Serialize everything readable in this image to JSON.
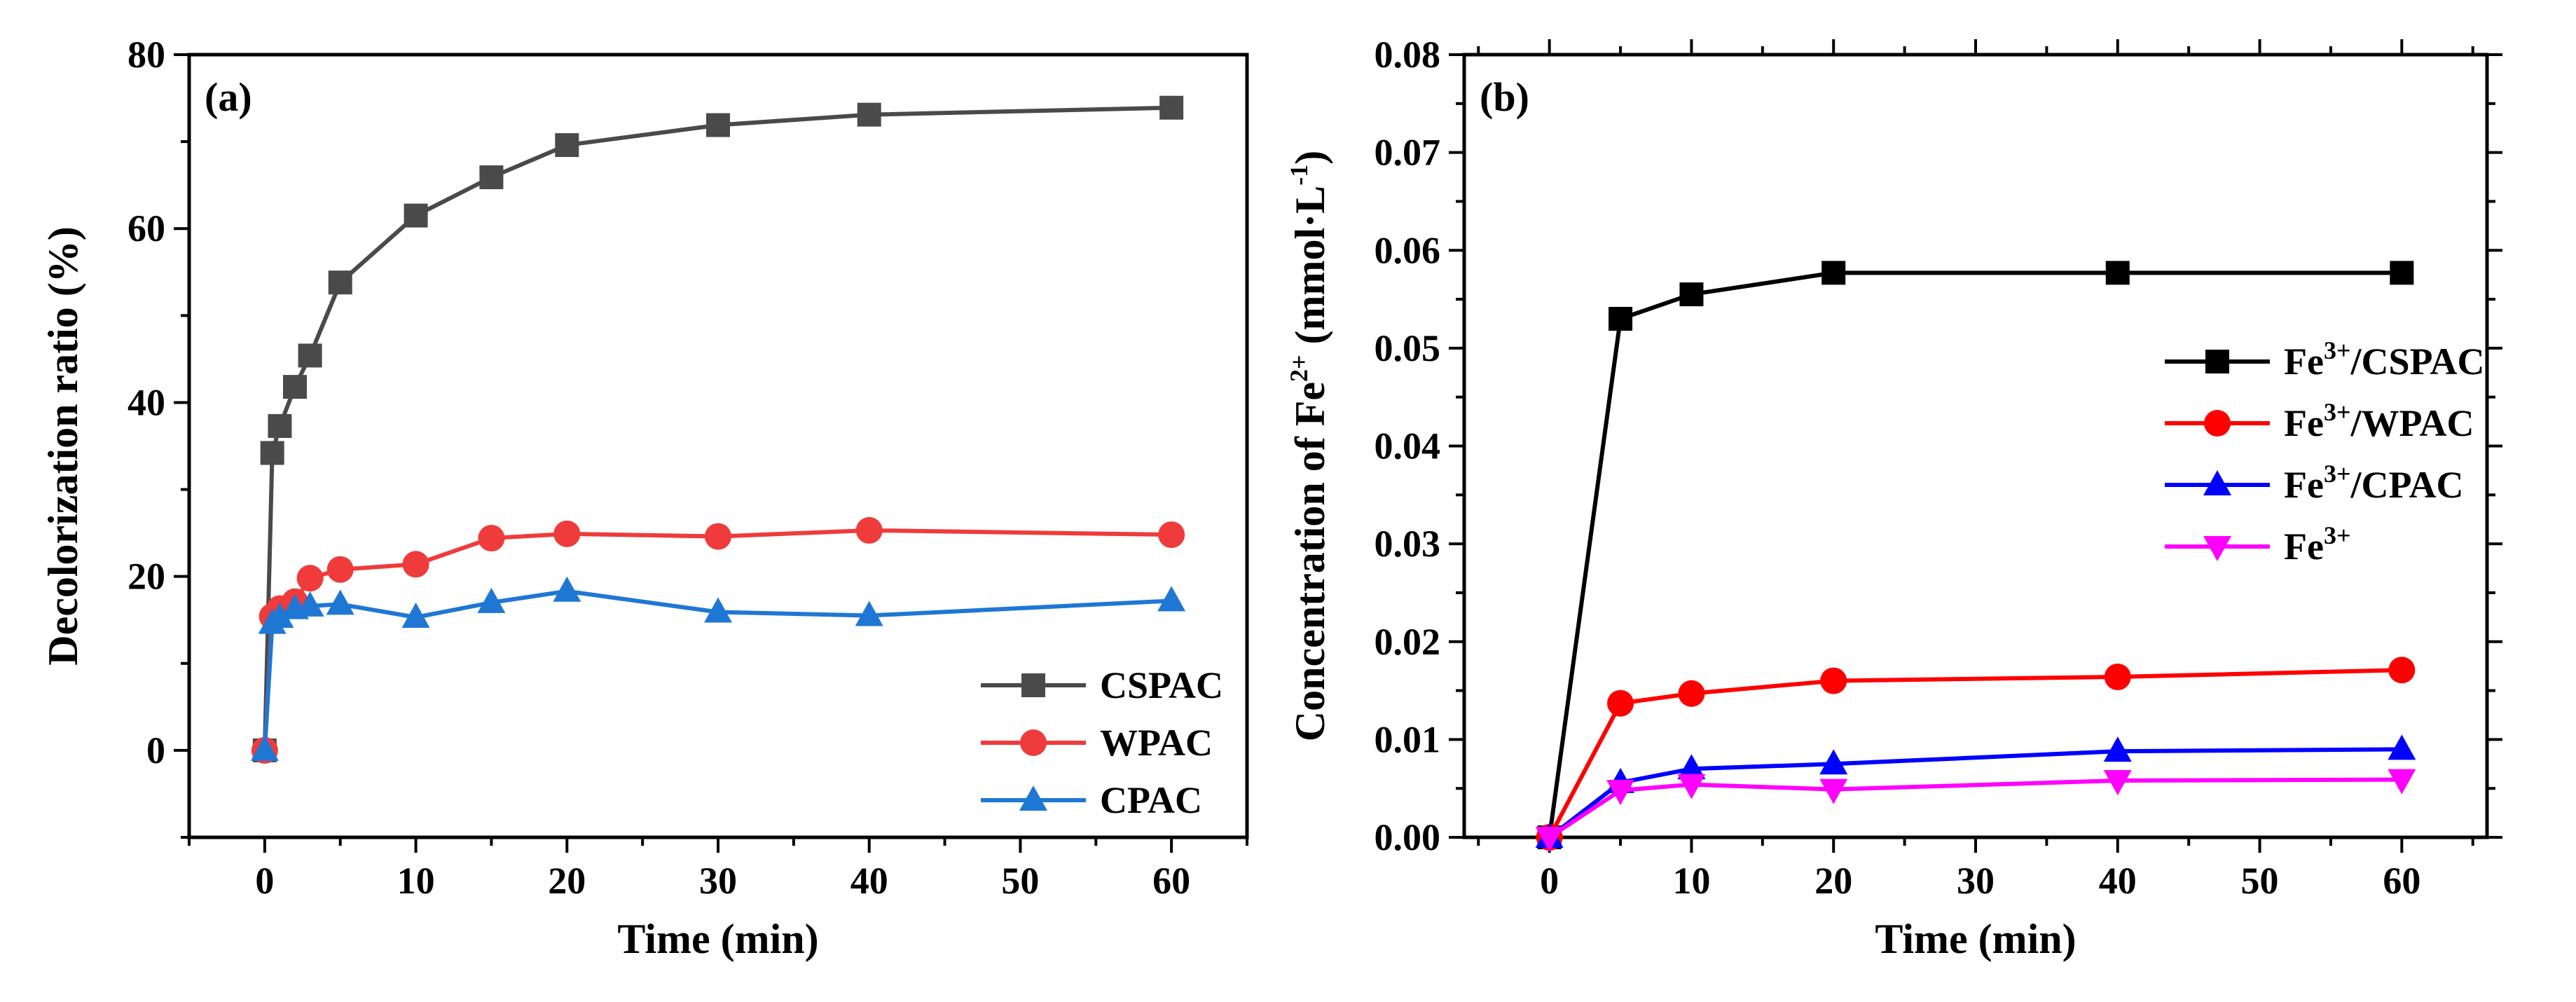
{
  "chart_data": [
    {
      "type": "line",
      "panel_label": "(a)",
      "xlabel": "Time (min)",
      "ylabel": "Decolorization ratio (%)",
      "xlim": [
        -5,
        65
      ],
      "ylim": [
        -10,
        80
      ],
      "xticks": [
        0,
        10,
        20,
        30,
        40,
        50,
        60
      ],
      "yticks": [
        0,
        20,
        40,
        60,
        80
      ],
      "legend_position": "bottom-right",
      "series": [
        {
          "name": "CSPAC",
          "color": "#4a4a4a",
          "marker": "square",
          "x": [
            0,
            0.5,
            1,
            2,
            3,
            5,
            10,
            15,
            20,
            30,
            40,
            60
          ],
          "y": [
            0,
            34.2,
            37.3,
            41.8,
            45.4,
            53.8,
            61.5,
            65.9,
            69.6,
            71.9,
            73.1,
            73.9
          ]
        },
        {
          "name": "WPAC",
          "color": "#ef3b3b",
          "marker": "circle",
          "x": [
            0,
            0.5,
            1,
            2,
            3,
            5,
            10,
            15,
            20,
            30,
            40,
            60
          ],
          "y": [
            0,
            15.4,
            16.3,
            17.1,
            19.8,
            20.8,
            21.4,
            24.4,
            24.9,
            24.6,
            25.3,
            24.8
          ]
        },
        {
          "name": "CPAC",
          "color": "#1f77d4",
          "marker": "triangle-up",
          "x": [
            0,
            0.5,
            1,
            2,
            3,
            5,
            10,
            15,
            20,
            30,
            40,
            60
          ],
          "y": [
            0,
            14.6,
            15.3,
            16.3,
            16.6,
            16.8,
            15.3,
            17.0,
            18.3,
            15.9,
            15.5,
            17.2
          ]
        }
      ]
    },
    {
      "type": "line",
      "panel_label": "(b)",
      "xlabel": "Time (min)",
      "ylabel_main": "Concentration of Fe",
      "ylabel_sup": "2+",
      "ylabel_unit_a": " (mmol·L",
      "ylabel_unit_sup": "-1",
      "ylabel_unit_b": ")",
      "xlim": [
        -6,
        66
      ],
      "ylim": [
        0,
        0.08
      ],
      "xticks": [
        0,
        10,
        20,
        30,
        40,
        50,
        60
      ],
      "yticks": [
        "0.00",
        "0.01",
        "0.02",
        "0.03",
        "0.04",
        "0.05",
        "0.06",
        "0.07",
        "0.08"
      ],
      "legend_position": "right",
      "series": [
        {
          "name_base": "Fe",
          "name_sup": "3+",
          "name_rest": "/CSPAC",
          "color": "#000000",
          "marker": "square",
          "x": [
            0,
            5,
            10,
            20,
            40,
            60
          ],
          "y": [
            0,
            0.053,
            0.0555,
            0.0577,
            0.0577,
            0.0577
          ]
        },
        {
          "name_base": "Fe",
          "name_sup": "3+",
          "name_rest": "/WPAC",
          "color": "#ff0000",
          "marker": "circle",
          "x": [
            0,
            5,
            10,
            20,
            40,
            60
          ],
          "y": [
            0,
            0.0137,
            0.0147,
            0.016,
            0.0164,
            0.0171
          ]
        },
        {
          "name_base": "Fe",
          "name_sup": "3+",
          "name_rest": "/CPAC",
          "color": "#0000ff",
          "marker": "triangle-up",
          "x": [
            0,
            5,
            10,
            20,
            40,
            60
          ],
          "y": [
            0,
            0.0056,
            0.007,
            0.0075,
            0.0088,
            0.009
          ]
        },
        {
          "name_base": "Fe",
          "name_sup": "3+",
          "name_rest": "",
          "color": "#ff00ff",
          "marker": "triangle-down",
          "x": [
            0,
            5,
            10,
            20,
            40,
            60
          ],
          "y": [
            0,
            0.0048,
            0.0054,
            0.0049,
            0.0058,
            0.0059
          ]
        }
      ]
    }
  ]
}
